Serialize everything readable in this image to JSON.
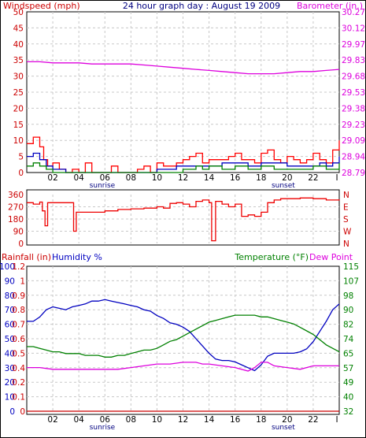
{
  "header": {
    "title": "24 hour graph day : August 19 2009",
    "left_label": "Windspeed (mph)",
    "right_label": "Barometer (in.)"
  },
  "panel3_labels": {
    "rainfall": "Rainfall (in)",
    "humidity": "Humidity %",
    "temperature": "Temperature (°F)",
    "dewpoint": "Dew Point"
  },
  "x_axis": {
    "hours": [
      "02",
      "04",
      "06",
      "08",
      "10",
      "12",
      "14",
      "16",
      "18",
      "20",
      "22"
    ],
    "end_tick": "I",
    "sunrise_label": "sunrise",
    "sunset_label": "sunset",
    "sunrise_hour": 5.8,
    "sunset_hour": 19.7
  },
  "colors": {
    "wind_red": "#ff0000",
    "wind_blue": "#0000c0",
    "wind_green": "#008000",
    "barometer": "#dd00dd",
    "direction": "#ee0000",
    "humidity": "#0000c0",
    "temperature": "#008000",
    "dewpoint": "#dd00dd",
    "rainfall": "#cc0000",
    "title_text": "#000080"
  },
  "chart_data": [
    {
      "type": "line",
      "title": "24 hour graph day : August 19 2009",
      "x_unit": "hour",
      "xlim": [
        0,
        24
      ],
      "left_axis": {
        "label": "Windspeed (mph)",
        "range": [
          0,
          50
        ],
        "ticks": [
          "0",
          "5",
          "10",
          "15",
          "20",
          "25",
          "30",
          "35",
          "40",
          "45",
          "50"
        ]
      },
      "right_axis": {
        "label": "Barometer (in.)",
        "range": [
          28.79,
          30.27
        ],
        "ticks": [
          "28.79",
          "28.94",
          "29.09",
          "29.23",
          "29.38",
          "29.53",
          "29.68",
          "29.83",
          "29.97",
          "30.12",
          "30.27"
        ]
      },
      "grid": true,
      "series": [
        {
          "name": "Windspeed (mph)",
          "axis": "left",
          "color": "#ff0000",
          "x": [
            0,
            0.5,
            1,
            1.3,
            1.6,
            2,
            2.5,
            3,
            3.5,
            4,
            4.5,
            5,
            5.5,
            6,
            6.5,
            7,
            7.5,
            8,
            8.5,
            9,
            9.5,
            10,
            10.5,
            11,
            11.5,
            12,
            12.5,
            13,
            13.5,
            14,
            14.5,
            15,
            15.5,
            16,
            16.5,
            17,
            17.5,
            18,
            18.5,
            19,
            19.5,
            20,
            20.5,
            21,
            21.5,
            22,
            22.5,
            23,
            23.5,
            24
          ],
          "y": [
            9,
            11,
            8,
            4,
            2,
            3,
            1,
            0,
            1,
            0,
            3,
            0,
            0,
            0,
            2,
            0,
            0,
            0,
            1,
            2,
            0,
            3,
            2,
            2,
            3,
            4,
            5,
            6,
            3,
            4,
            4,
            4,
            5,
            6,
            4,
            4,
            3,
            6,
            7,
            4,
            3,
            5,
            4,
            3,
            4,
            6,
            4,
            3,
            7,
            10
          ]
        },
        {
          "name": "Wind average",
          "axis": "left",
          "color": "#0000c0",
          "x": [
            0,
            0.5,
            1,
            1.5,
            2,
            2.5,
            3,
            4,
            5,
            6,
            7,
            8,
            9,
            10,
            10.5,
            11,
            11.5,
            12,
            12.5,
            13,
            13.5,
            14,
            15,
            16,
            17,
            18,
            19,
            20,
            21,
            22,
            22.5,
            23,
            23.5,
            24
          ],
          "y": [
            5,
            6,
            4,
            2,
            1,
            1,
            0,
            0,
            0,
            0,
            0,
            0,
            0,
            1,
            1,
            1,
            2,
            2,
            2,
            2,
            2,
            2,
            3,
            3,
            2,
            3,
            3,
            2,
            2,
            2,
            3,
            2,
            3,
            5
          ]
        },
        {
          "name": "Wind low",
          "axis": "left",
          "color": "#008000",
          "x": [
            0,
            0.5,
            1,
            1.5,
            2,
            2.5,
            3,
            4,
            5,
            6,
            7,
            8,
            9,
            10,
            11,
            12,
            12.5,
            13,
            13.5,
            14,
            15,
            16,
            17,
            18,
            19,
            20,
            21,
            22,
            23,
            24
          ],
          "y": [
            2,
            3,
            2,
            1,
            0,
            0,
            0,
            0,
            0,
            0,
            0,
            0,
            0,
            0,
            0,
            1,
            1,
            2,
            1,
            2,
            1,
            2,
            1,
            2,
            1,
            1,
            1,
            2,
            1,
            3
          ]
        },
        {
          "name": "Barometer (in.)",
          "axis": "right",
          "color": "#dd00dd",
          "x": [
            0,
            1,
            2,
            3,
            4,
            5,
            6,
            7,
            8,
            9,
            10,
            11,
            12,
            13,
            14,
            15,
            16,
            17,
            18,
            19,
            20,
            21,
            22,
            23,
            24
          ],
          "y": [
            29.81,
            29.81,
            29.8,
            29.8,
            29.8,
            29.79,
            29.79,
            29.79,
            29.79,
            29.78,
            29.77,
            29.76,
            29.75,
            29.74,
            29.73,
            29.72,
            29.71,
            29.7,
            29.7,
            29.7,
            29.71,
            29.72,
            29.72,
            29.73,
            29.74
          ]
        }
      ]
    },
    {
      "type": "line",
      "title": "",
      "x_unit": "hour",
      "xlim": [
        0,
        24
      ],
      "left_axis": {
        "range": [
          0,
          360
        ],
        "ticks": [
          "0",
          "90",
          "180",
          "270",
          "360"
        ]
      },
      "right_axis": {
        "ticks": [
          "N",
          "W",
          "S",
          "E",
          "N"
        ]
      },
      "grid": true,
      "series": [
        {
          "name": "Wind direction",
          "color": "#ee0000",
          "x": [
            0,
            0.5,
            1,
            1.2,
            1.4,
            1.6,
            2,
            3,
            3.5,
            3.6,
            3.8,
            4,
            5,
            6,
            7,
            8,
            9,
            10,
            10.5,
            11,
            11.5,
            12,
            12.5,
            13,
            13.5,
            14,
            14.2,
            14.5,
            15,
            15.5,
            16,
            16.5,
            17,
            17.5,
            18,
            18.5,
            19,
            19.5,
            20,
            21,
            22,
            23,
            24
          ],
          "y": [
            300,
            290,
            305,
            240,
            130,
            300,
            300,
            300,
            300,
            90,
            230,
            230,
            230,
            240,
            250,
            255,
            260,
            270,
            260,
            295,
            300,
            290,
            270,
            310,
            320,
            300,
            20,
            310,
            290,
            270,
            290,
            200,
            210,
            200,
            230,
            300,
            320,
            330,
            330,
            335,
            330,
            320,
            325
          ]
        }
      ]
    },
    {
      "type": "line",
      "title": "",
      "x_unit": "hour",
      "xlim": [
        0,
        24
      ],
      "left_axis": {
        "label": "Humidity %",
        "range": [
          0,
          100
        ],
        "ticks": [
          "0",
          "10",
          "20",
          "30",
          "40",
          "50",
          "60",
          "70",
          "80",
          "90",
          "100"
        ]
      },
      "rain_axis": {
        "label": "Rainfall (in)",
        "range": [
          0,
          1.2
        ],
        "ticks": [
          "0",
          "0.1",
          "0.2",
          "0.4",
          "0.5",
          "0.6",
          "0.7",
          "0.8",
          "0.9",
          "1",
          "1.2"
        ]
      },
      "right_axis": {
        "label": "Temperature (°F)",
        "range": [
          32,
          115
        ],
        "ticks": [
          "32",
          "40",
          "49",
          "57",
          "65",
          "74",
          "82",
          "90",
          "98",
          "107",
          "115"
        ]
      },
      "grid": true,
      "series": [
        {
          "name": "Humidity %",
          "axis": "left",
          "color": "#0000c0",
          "x": [
            0,
            0.5,
            1,
            1.5,
            2,
            2.5,
            3,
            3.5,
            4,
            4.5,
            5,
            5.5,
            6,
            6.5,
            7,
            7.5,
            8,
            8.5,
            9,
            9.5,
            10,
            10.5,
            11,
            11.5,
            12,
            12.5,
            13,
            13.5,
            14,
            14.5,
            15,
            15.5,
            16,
            16.5,
            17,
            17.5,
            18,
            18.5,
            19,
            19.5,
            20,
            20.5,
            21,
            21.5,
            22,
            22.5,
            23,
            23.5,
            24
          ],
          "y": [
            62,
            62,
            65,
            70,
            72,
            71,
            70,
            72,
            73,
            74,
            76,
            76,
            77,
            76,
            75,
            74,
            73,
            72,
            70,
            69,
            66,
            64,
            61,
            60,
            58,
            55,
            50,
            45,
            40,
            36,
            35,
            35,
            34,
            32,
            30,
            28,
            32,
            38,
            40,
            40,
            40,
            40,
            41,
            43,
            48,
            55,
            62,
            70,
            74
          ]
        },
        {
          "name": "Temperature (°F)",
          "axis": "right",
          "color": "#008000",
          "x": [
            0,
            0.5,
            1,
            1.5,
            2,
            2.5,
            3,
            3.5,
            4,
            4.5,
            5,
            5.5,
            6,
            6.5,
            7,
            7.5,
            8,
            8.5,
            9,
            9.5,
            10,
            10.5,
            11,
            11.5,
            12,
            12.5,
            13,
            13.5,
            14,
            14.5,
            15,
            15.5,
            16,
            16.5,
            17,
            17.5,
            18,
            18.5,
            19,
            19.5,
            20,
            20.5,
            21,
            21.5,
            22,
            22.5,
            23,
            23.5,
            24
          ],
          "y": [
            69,
            69,
            68,
            67,
            66,
            66,
            65,
            65,
            65,
            64,
            64,
            64,
            63,
            63,
            64,
            64,
            65,
            66,
            67,
            67,
            68,
            70,
            72,
            73,
            75,
            77,
            79,
            81,
            83,
            84,
            85,
            86,
            87,
            87,
            87,
            87,
            86,
            86,
            85,
            84,
            83,
            82,
            80,
            78,
            76,
            73,
            70,
            68,
            66
          ]
        },
        {
          "name": "Dew Point",
          "axis": "right",
          "color": "#dd00dd",
          "x": [
            0,
            1,
            2,
            3,
            4,
            5,
            6,
            7,
            8,
            9,
            10,
            11,
            12,
            12.5,
            13,
            13.5,
            14,
            15,
            16,
            17,
            17.5,
            18,
            18.5,
            19,
            20,
            21,
            22,
            23,
            24
          ],
          "y": [
            57,
            57,
            56,
            56,
            56,
            56,
            56,
            56,
            57,
            58,
            59,
            59,
            60,
            60,
            60,
            59,
            59,
            58,
            57,
            55,
            57,
            60,
            60,
            58,
            57,
            56,
            58,
            58,
            58
          ]
        },
        {
          "name": "Rainfall (in)",
          "axis": "rain",
          "color": "#cc0000",
          "x": [
            0,
            24
          ],
          "y": [
            0,
            0
          ]
        }
      ]
    }
  ]
}
